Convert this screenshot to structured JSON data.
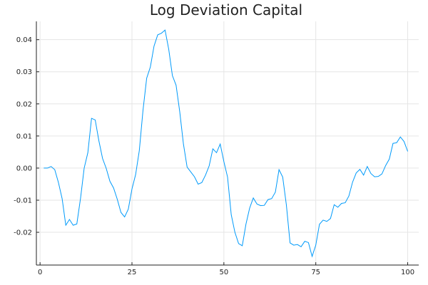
{
  "chart_data": {
    "type": "line",
    "title": "Log Deviation Capital",
    "xlabel": "",
    "ylabel": "",
    "xlim": [
      -1,
      103
    ],
    "ylim": [
      -0.0302,
      0.0457
    ],
    "x_ticks": [
      0,
      25,
      50,
      75,
      100
    ],
    "y_ticks": [
      -0.02,
      -0.01,
      0.0,
      0.01,
      0.02,
      0.03,
      0.04
    ],
    "x_tick_labels": [
      "0",
      "25",
      "50",
      "75",
      "100"
    ],
    "y_tick_labels": [
      "-0.02",
      "-0.01",
      "0.00",
      "0.01",
      "0.02",
      "0.03",
      "0.04"
    ],
    "grid": true,
    "legend": "none",
    "color": "#009AFA",
    "series": [
      {
        "x": [
          1,
          2,
          3,
          4,
          5,
          6,
          7,
          8,
          9,
          10,
          11,
          12,
          13,
          14,
          15,
          16,
          17,
          18,
          19,
          20,
          21,
          22,
          23,
          24,
          25,
          26,
          27,
          28,
          29,
          30,
          31,
          32,
          33,
          34,
          35,
          36,
          37,
          38,
          39,
          40,
          41,
          42,
          43,
          44,
          45,
          46,
          47,
          48,
          49,
          50,
          51,
          52,
          53,
          54,
          55,
          56,
          57,
          58,
          59,
          60,
          61,
          62,
          63,
          64,
          65,
          66,
          67,
          68,
          69,
          70,
          71,
          72,
          73,
          74,
          75,
          76,
          77,
          78,
          79,
          80,
          81,
          82,
          83,
          84,
          85,
          86,
          87,
          88,
          89,
          90,
          91,
          92,
          93,
          94,
          95,
          96,
          97,
          98,
          99,
          100
        ],
        "values": [
          0.0,
          0.0,
          0.0005,
          -0.0005,
          -0.0045,
          -0.0095,
          -0.0178,
          -0.016,
          -0.0178,
          -0.0174,
          -0.0095,
          0.0,
          0.0048,
          0.0155,
          0.015,
          0.0085,
          0.003,
          -0.0001,
          -0.0041,
          -0.0062,
          -0.0097,
          -0.0138,
          -0.0152,
          -0.0128,
          -0.0065,
          -0.002,
          0.0055,
          0.018,
          0.028,
          0.0315,
          0.038,
          0.0415,
          0.042,
          0.043,
          0.037,
          0.0288,
          0.0258,
          0.0175,
          0.0075,
          0.0003,
          -0.0012,
          -0.0027,
          -0.005,
          -0.0045,
          -0.0022,
          0.0007,
          0.006,
          0.0048,
          0.0075,
          0.002,
          -0.0028,
          -0.0145,
          -0.02,
          -0.0235,
          -0.0242,
          -0.0175,
          -0.0125,
          -0.0093,
          -0.0112,
          -0.0117,
          -0.0116,
          -0.0098,
          -0.0095,
          -0.0075,
          -0.0005,
          -0.0028,
          -0.0115,
          -0.0233,
          -0.024,
          -0.0238,
          -0.0245,
          -0.0228,
          -0.0232,
          -0.0275,
          -0.024,
          -0.0175,
          -0.0162,
          -0.0166,
          -0.0157,
          -0.0114,
          -0.0122,
          -0.011,
          -0.0108,
          -0.0087,
          -0.0044,
          -0.0015,
          -0.0004,
          -0.0022,
          0.0005,
          -0.0017,
          -0.0027,
          -0.0026,
          -0.0018,
          0.0008,
          0.0028,
          0.0077,
          0.0079,
          0.0097,
          0.0083,
          0.0052
        ]
      }
    ]
  }
}
